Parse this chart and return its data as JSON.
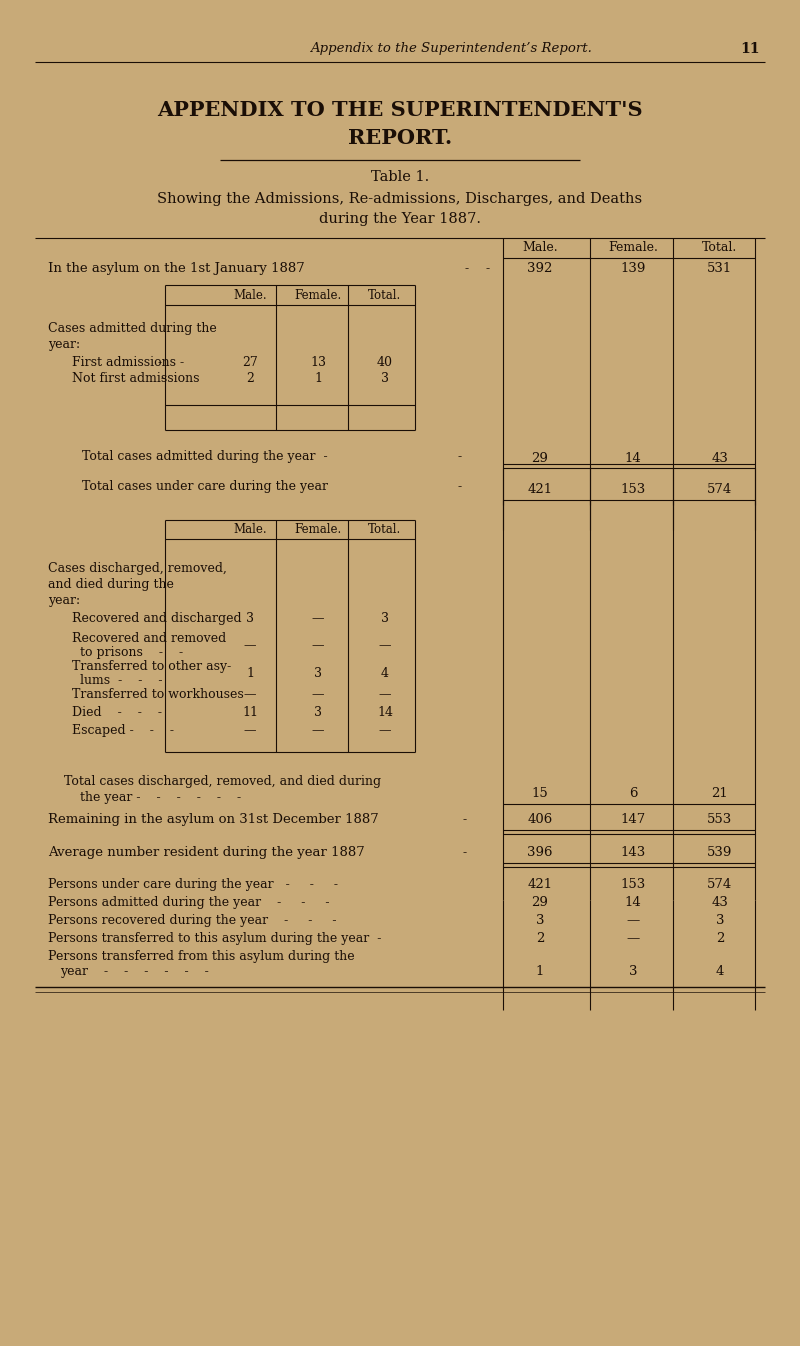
{
  "bg_color": "#c8aa78",
  "text_color": "#1a0e06",
  "header_italic": "Appendix to the Superintendent’s Report.",
  "page_number": "11",
  "main_title_line1": "APPENDIX TO THE SUPERINTENDENT'S",
  "main_title_line2": "REPORT.",
  "table_label": "Table 1.",
  "subtitle_line1": "Showing the Admissions, Re-admissions, Discharges, and Deaths",
  "subtitle_line2": "during the Year 1887.",
  "row1_label": "In the asylum on the 1st January 1887",
  "row1_vals": [
    "392",
    "139",
    "531"
  ],
  "first_admissions_vals": [
    "27",
    "13",
    "40"
  ],
  "not_first_vals": [
    "2",
    "1",
    "3"
  ],
  "total_admitted_vals": [
    "29",
    "14",
    "43"
  ],
  "total_under_care_vals": [
    "421",
    "153",
    "574"
  ],
  "total_discharged_vals": [
    "15",
    "6",
    "21"
  ],
  "remaining_vals": [
    "406",
    "147",
    "553"
  ],
  "average_vals": [
    "396",
    "143",
    "539"
  ]
}
